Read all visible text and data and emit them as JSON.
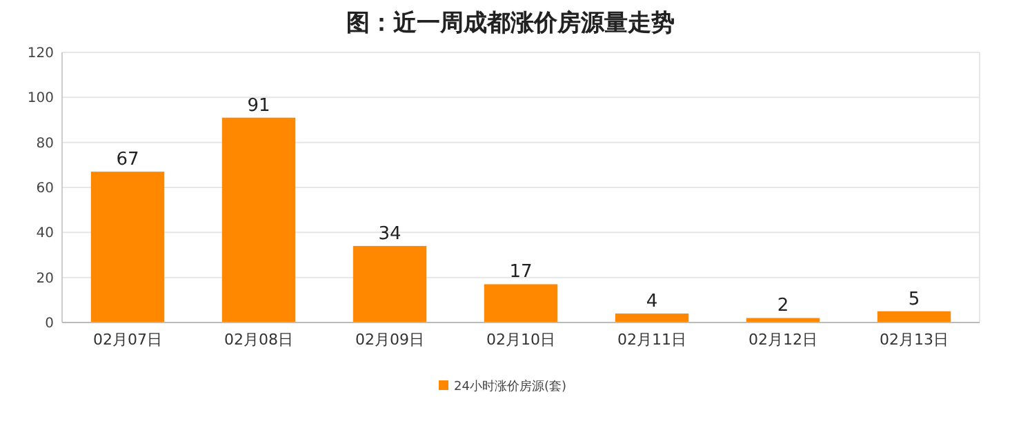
{
  "chart_data": {
    "type": "bar",
    "title": "图：近一周成都涨价房源量走势",
    "categories": [
      "02月07日",
      "02月08日",
      "02月09日",
      "02月10日",
      "02月11日",
      "02月12日",
      "02月13日"
    ],
    "series": [
      {
        "name": "24小时涨价房源(套)",
        "color": "#ff8800",
        "values": [
          67,
          91,
          34,
          17,
          4,
          2,
          5
        ]
      }
    ],
    "ylim": [
      0,
      120
    ],
    "yticks": [
      0,
      20,
      40,
      60,
      80,
      100,
      120
    ],
    "grid": "y",
    "data_labels": true,
    "legend": "bottom"
  }
}
